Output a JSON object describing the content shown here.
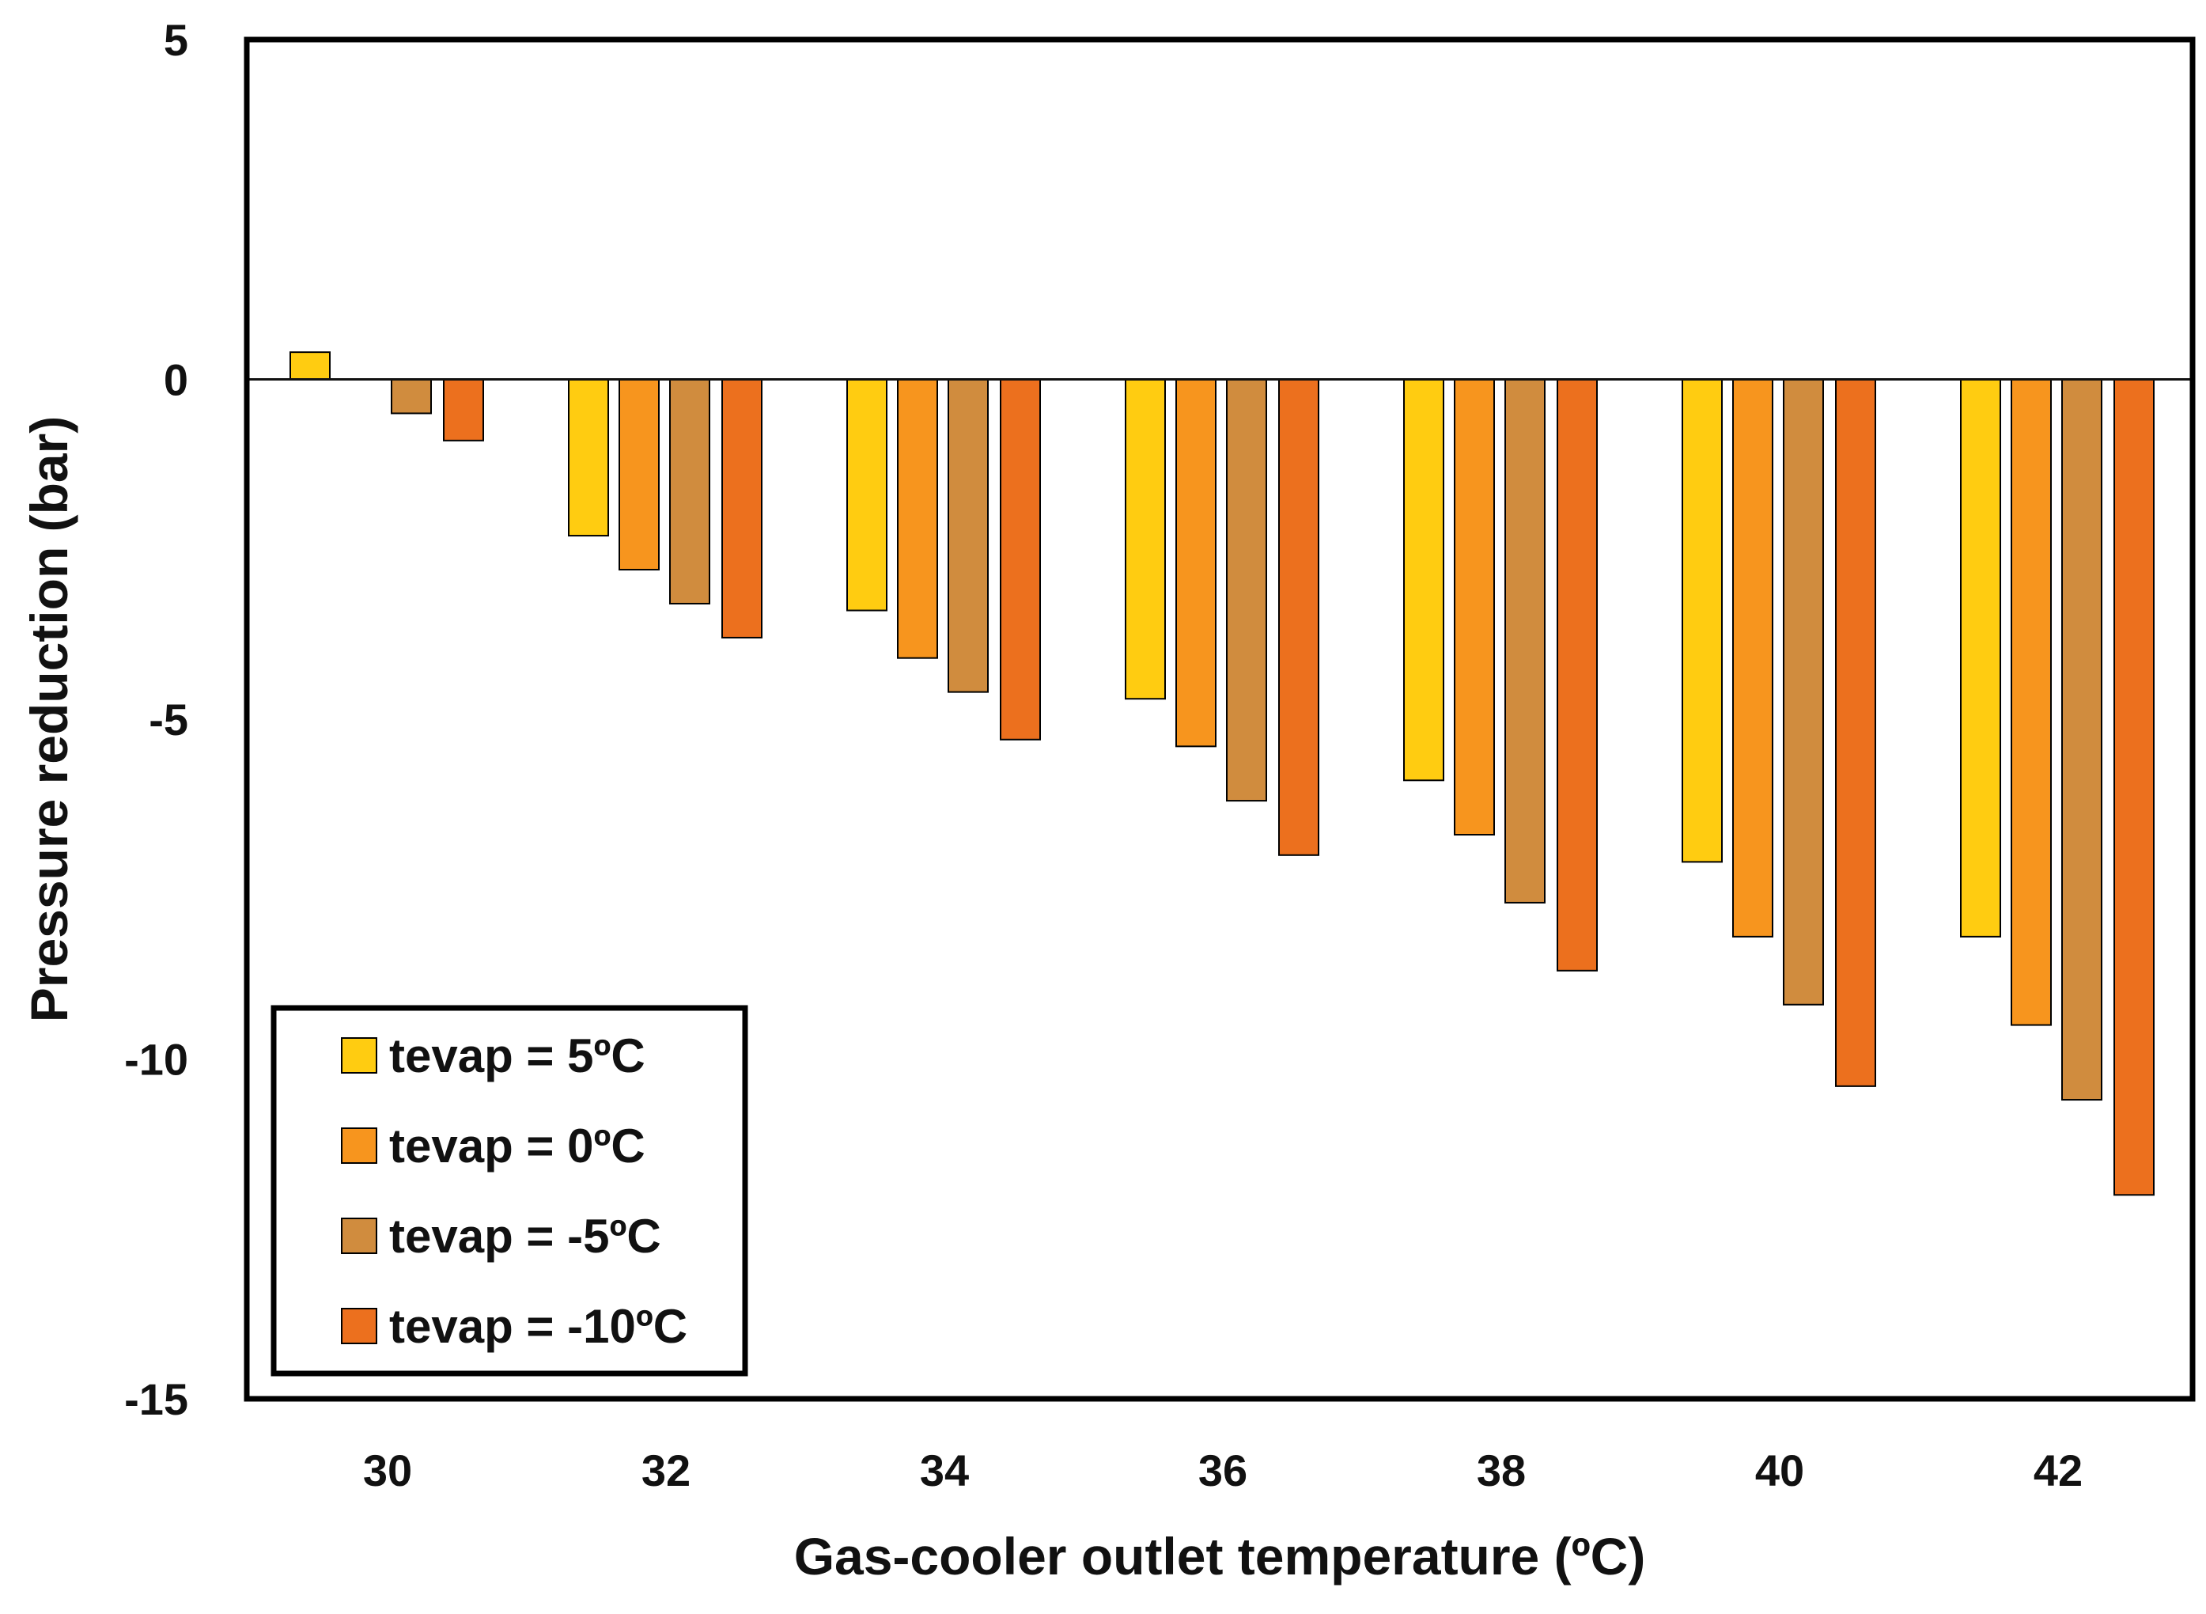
{
  "chart_data": {
    "type": "bar",
    "title": "",
    "xlabel": "Gas-cooler outlet temperature (ºC)",
    "ylabel": "Pressure reduction (bar)",
    "categories": [
      "30",
      "32",
      "34",
      "36",
      "38",
      "40",
      "42"
    ],
    "ylim": [
      -15,
      5
    ],
    "yticks": [
      5,
      0,
      -5,
      -10,
      -15
    ],
    "grid": false,
    "legend_position": "bottom-left",
    "series": [
      {
        "name": "tevap = 5ºC",
        "color": "#FFCC11",
        "values": [
          0.4,
          -2.3,
          -3.4,
          -4.7,
          -5.9,
          -7.1,
          -8.2
        ]
      },
      {
        "name": "tevap = 0ºC",
        "color": "#F7951E",
        "values": [
          0.0,
          -2.8,
          -4.1,
          -5.4,
          -6.7,
          -8.2,
          -9.5
        ]
      },
      {
        "name": "tevap = -5ºC",
        "color": "#D08C3E",
        "values": [
          -0.5,
          -3.3,
          -4.6,
          -6.2,
          -7.7,
          -9.2,
          -10.6
        ]
      },
      {
        "name": "tevap = -10ºC",
        "color": "#EC701E",
        "values": [
          -0.9,
          -3.8,
          -5.3,
          -7.0,
          -8.7,
          -10.4,
          -12.0
        ]
      }
    ]
  }
}
